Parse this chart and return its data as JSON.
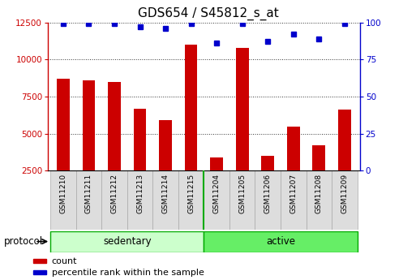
{
  "title": "GDS654 / S45812_s_at",
  "categories": [
    "GSM11210",
    "GSM11211",
    "GSM11212",
    "GSM11213",
    "GSM11214",
    "GSM11215",
    "GSM11204",
    "GSM11205",
    "GSM11206",
    "GSM11207",
    "GSM11208",
    "GSM11209"
  ],
  "counts": [
    8700,
    8600,
    8500,
    6700,
    5900,
    11000,
    3400,
    10800,
    3500,
    5500,
    4200,
    6600
  ],
  "percentile_ranks": [
    99,
    99,
    99,
    97,
    96,
    99,
    86,
    99,
    87,
    92,
    89,
    99
  ],
  "bar_color": "#cc0000",
  "dot_color": "#0000cc",
  "group_labels": [
    "sedentary",
    "active"
  ],
  "group_sizes": [
    6,
    6
  ],
  "group_colors_sed": "#ccffcc",
  "group_colors_act": "#66ee66",
  "group_border_color": "#00aa00",
  "ylim_left": [
    2500,
    12500
  ],
  "ylim_right": [
    0,
    100
  ],
  "yticks_left": [
    2500,
    5000,
    7500,
    10000,
    12500
  ],
  "yticks_right": [
    0,
    25,
    50,
    75,
    100
  ],
  "left_axis_color": "#cc0000",
  "right_axis_color": "#0000cc",
  "bg_color": "#ffffff",
  "grid_color": "#333333",
  "bar_width": 0.5,
  "legend_items": [
    "count",
    "percentile rank within the sample"
  ],
  "protocol_label": "protocol",
  "title_fontsize": 11,
  "tick_fontsize": 7.5,
  "label_fontsize": 8.5,
  "cat_fontsize": 6.5
}
